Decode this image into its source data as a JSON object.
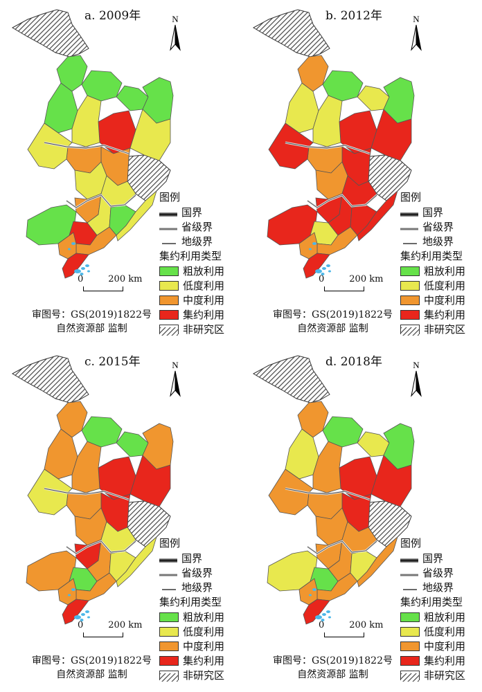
{
  "colors": {
    "extensive": "#66e14a",
    "low": "#e8e84e",
    "medium": "#f0962f",
    "intensive": "#e8261c",
    "non_study": "hatch-gray",
    "border": "#555555"
  },
  "panels": [
    {
      "title": "a. 2009年",
      "classes": [
        "extensive",
        "extensive",
        "extensive",
        "extensive",
        "extensive",
        "intensive",
        "low",
        "low",
        "medium",
        "medium",
        "low",
        "low",
        "low",
        "medium",
        "low",
        "extensive",
        "intensive",
        "extensive",
        "medium",
        "low",
        "medium",
        "intensive"
      ]
    },
    {
      "title": "b. 2012年",
      "classes": [
        "medium",
        "extensive",
        "low",
        "extensive",
        "low",
        "intensive",
        "intensive",
        "low",
        "intensive",
        "medium",
        "intensive",
        "medium",
        "intensive",
        "intensive",
        "intensive",
        "intensive",
        "low",
        "intensive",
        "medium",
        "intensive",
        "medium",
        "intensive"
      ]
    },
    {
      "title": "c. 2015年",
      "classes": [
        "medium",
        "extensive",
        "extensive",
        "medium",
        "medium",
        "intensive",
        "intensive",
        "medium",
        "intensive",
        "medium",
        "low",
        "medium",
        "low",
        "intensive",
        "medium",
        "medium",
        "extensive",
        "low",
        "medium",
        "low",
        "medium",
        "intensive"
      ]
    },
    {
      "title": "d. 2018年",
      "classes": [
        "medium",
        "extensive",
        "low",
        "extensive",
        "low",
        "intensive",
        "intensive",
        "medium",
        "intensive",
        "medium",
        "medium",
        "medium",
        "medium",
        "medium",
        "medium",
        "low",
        "extensive",
        "low",
        "medium",
        "medium",
        "medium",
        "intensive"
      ]
    }
  ],
  "north_label": "N",
  "legend": {
    "title": "图例",
    "lines": [
      "国界",
      "省级界",
      "地级界"
    ],
    "type_title": "集约利用类型",
    "classes": [
      "粗放利用",
      "低度利用",
      "中度利用",
      "集约利用",
      "非研究区"
    ]
  },
  "scale": {
    "start": "0",
    "end": "200 km"
  },
  "credit": [
    "审图号：GS(2019)1822号",
    "自然资源部 监制"
  ]
}
